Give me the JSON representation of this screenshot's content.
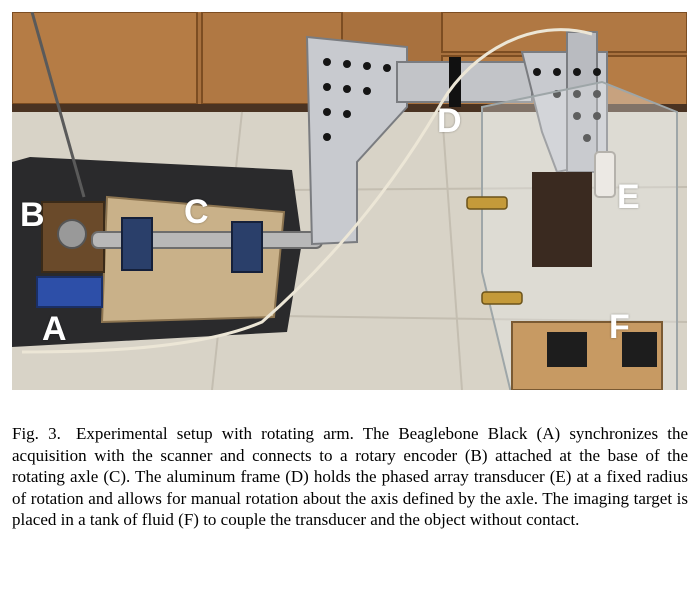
{
  "figure": {
    "labels": {
      "A": "A",
      "B": "B",
      "C": "C",
      "D": "D",
      "E": "E",
      "F": "F"
    }
  },
  "caption": {
    "number": "Fig. 3.",
    "text": "Experimental setup with rotating arm. The Beaglebone Black (A) synchronizes the acquisition with the scanner and connects to a rotary encoder (B) attached at the base of the rotating axle (C). The aluminum frame (D) holds the phased array transducer (E) at a fixed radius of rotation and allows for manual rotation about the axis defined by the axle. The imaging target is placed in a tank of fluid (F) to couple the transducer and the object without contact."
  }
}
